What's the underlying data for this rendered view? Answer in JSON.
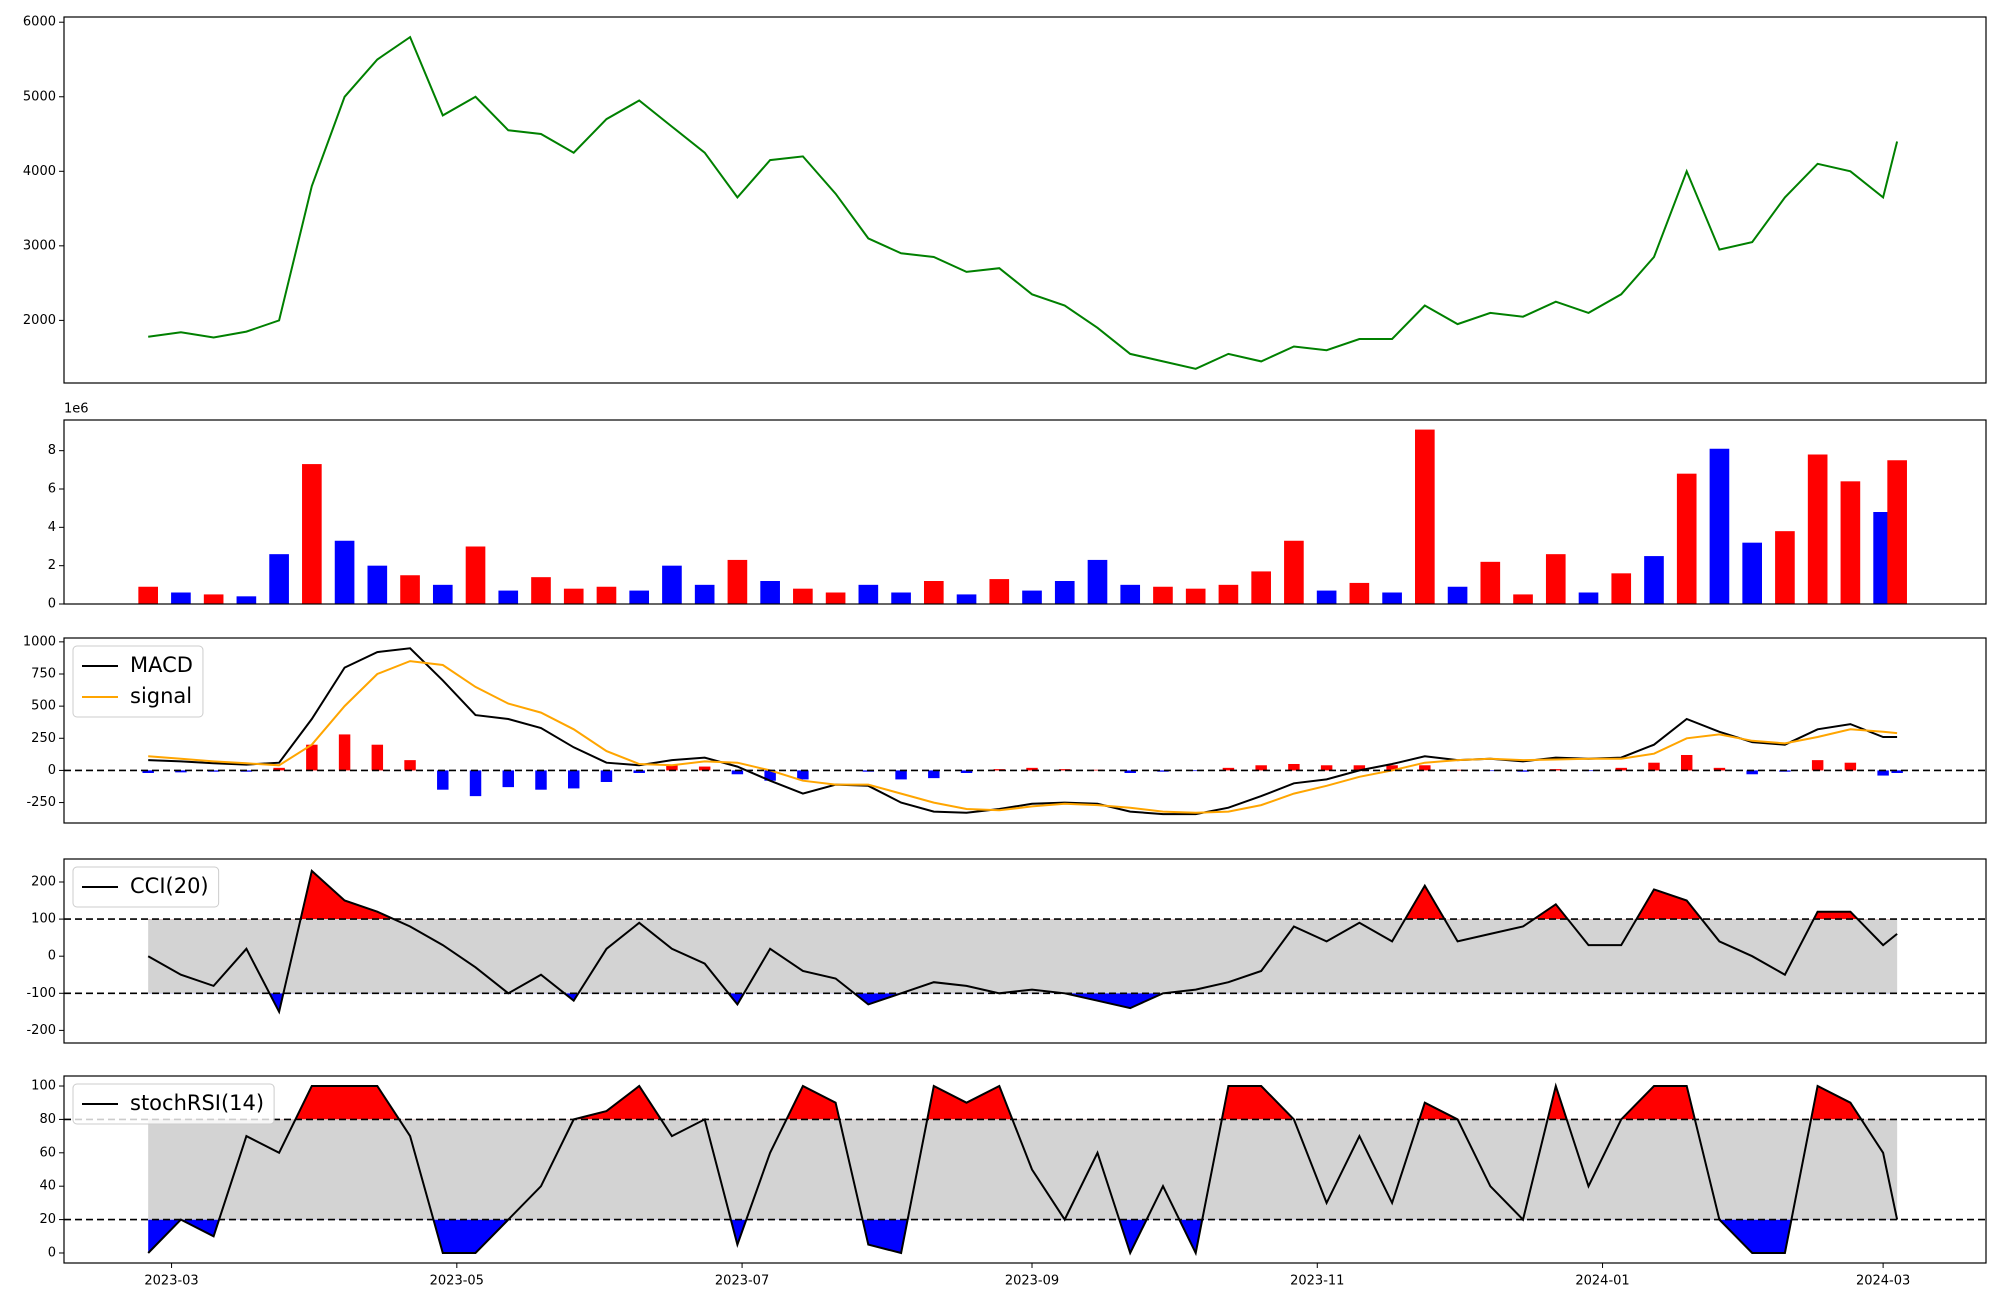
{
  "chart_data": [
    {
      "type": "line",
      "x": [
        "2023-02-24",
        "2023-03-03",
        "2023-03-10",
        "2023-03-17",
        "2023-03-24",
        "2023-03-31",
        "2023-04-07",
        "2023-04-14",
        "2023-04-21",
        "2023-04-28",
        "2023-05-05",
        "2023-05-12",
        "2023-05-19",
        "2023-05-26",
        "2023-06-02",
        "2023-06-09",
        "2023-06-16",
        "2023-06-23",
        "2023-06-30",
        "2023-07-07",
        "2023-07-14",
        "2023-07-21",
        "2023-07-28",
        "2023-08-04",
        "2023-08-11",
        "2023-08-18",
        "2023-08-25",
        "2023-09-01",
        "2023-09-08",
        "2023-09-15",
        "2023-09-22",
        "2023-09-29",
        "2023-10-06",
        "2023-10-13",
        "2023-10-20",
        "2023-10-27",
        "2023-11-03",
        "2023-11-10",
        "2023-11-17",
        "2023-11-24",
        "2023-12-01",
        "2023-12-08",
        "2023-12-15",
        "2023-12-22",
        "2023-12-29",
        "2024-01-05",
        "2024-01-12",
        "2024-01-19",
        "2024-01-26",
        "2024-02-02",
        "2024-02-09",
        "2024-02-16",
        "2024-02-23",
        "2024-03-01",
        "2024-03-04"
      ],
      "series": [
        {
          "color": "#008000",
          "values": [
            1780,
            1840,
            1770,
            1850,
            2000,
            3800,
            5000,
            5500,
            5800,
            4750,
            5000,
            4550,
            4500,
            4250,
            4700,
            4950,
            4600,
            4250,
            3650,
            4150,
            4200,
            3700,
            3100,
            2900,
            2850,
            2650,
            2700,
            2350,
            2200,
            1900,
            1550,
            1450,
            1350,
            1550,
            1450,
            1650,
            1600,
            1750,
            1750,
            2200,
            1950,
            2100,
            2050,
            2250,
            2100,
            2350,
            2850,
            4000,
            2950,
            3050,
            3650,
            4100,
            4000,
            3650,
            4400
          ]
        }
      ],
      "xlim": [
        "2023-02-06",
        "2024-03-23"
      ],
      "ylim": [
        1160,
        6070
      ],
      "yticks": [
        2000,
        3000,
        4000,
        5000,
        6000
      ]
    },
    {
      "type": "bar",
      "x": [
        "2023-02-24",
        "2023-03-03",
        "2023-03-10",
        "2023-03-17",
        "2023-03-24",
        "2023-03-31",
        "2023-04-07",
        "2023-04-14",
        "2023-04-21",
        "2023-04-28",
        "2023-05-05",
        "2023-05-12",
        "2023-05-19",
        "2023-05-26",
        "2023-06-02",
        "2023-06-09",
        "2023-06-16",
        "2023-06-23",
        "2023-06-30",
        "2023-07-07",
        "2023-07-14",
        "2023-07-21",
        "2023-07-28",
        "2023-08-04",
        "2023-08-11",
        "2023-08-18",
        "2023-08-25",
        "2023-09-01",
        "2023-09-08",
        "2023-09-15",
        "2023-09-22",
        "2023-09-29",
        "2023-10-06",
        "2023-10-13",
        "2023-10-20",
        "2023-10-27",
        "2023-11-03",
        "2023-11-10",
        "2023-11-17",
        "2023-11-24",
        "2023-12-01",
        "2023-12-08",
        "2023-12-15",
        "2023-12-22",
        "2023-12-29",
        "2024-01-05",
        "2024-01-12",
        "2024-01-19",
        "2024-01-26",
        "2024-02-02",
        "2024-02-09",
        "2024-02-16",
        "2024-02-23",
        "2024-03-01",
        "2024-03-04"
      ],
      "values": [
        0.9,
        0.6,
        0.5,
        0.4,
        2.6,
        7.3,
        3.3,
        2.0,
        1.5,
        1.0,
        3.0,
        0.7,
        1.4,
        0.8,
        0.9,
        0.7,
        2.0,
        1.0,
        2.3,
        1.2,
        0.8,
        0.6,
        1.0,
        0.6,
        1.2,
        0.5,
        1.3,
        0.7,
        1.2,
        2.3,
        1.0,
        0.9,
        0.8,
        1.0,
        1.7,
        3.3,
        0.7,
        1.1,
        0.6,
        9.1,
        0.9,
        2.2,
        0.5,
        2.6,
        0.6,
        1.6,
        2.5,
        6.8,
        8.1,
        3.2,
        3.8,
        7.8,
        6.4,
        4.8,
        7.5
      ],
      "colors": [
        "red",
        "blue",
        "red",
        "blue",
        "blue",
        "red",
        "blue",
        "blue",
        "red",
        "blue",
        "red",
        "blue",
        "red",
        "red",
        "red",
        "blue",
        "blue",
        "blue",
        "red",
        "blue",
        "red",
        "red",
        "blue",
        "blue",
        "red",
        "blue",
        "red",
        "blue",
        "blue",
        "blue",
        "blue",
        "red",
        "red",
        "red",
        "red",
        "red",
        "blue",
        "red",
        "blue",
        "red",
        "blue",
        "red",
        "red",
        "red",
        "blue",
        "red",
        "blue",
        "red",
        "blue",
        "blue",
        "red",
        "red",
        "red",
        "blue",
        "red"
      ],
      "offset_label": "1e6",
      "xlim": [
        "2023-02-06",
        "2024-03-23"
      ],
      "ylim": [
        0,
        9.6
      ],
      "yticks": [
        0,
        2,
        4,
        6,
        8
      ]
    },
    {
      "type": "macd",
      "x": [
        "2023-02-24",
        "2023-03-03",
        "2023-03-10",
        "2023-03-17",
        "2023-03-24",
        "2023-03-31",
        "2023-04-07",
        "2023-04-14",
        "2023-04-21",
        "2023-04-28",
        "2023-05-05",
        "2023-05-12",
        "2023-05-19",
        "2023-05-26",
        "2023-06-02",
        "2023-06-09",
        "2023-06-16",
        "2023-06-23",
        "2023-06-30",
        "2023-07-07",
        "2023-07-14",
        "2023-07-21",
        "2023-07-28",
        "2023-08-04",
        "2023-08-11",
        "2023-08-18",
        "2023-08-25",
        "2023-09-01",
        "2023-09-08",
        "2023-09-15",
        "2023-09-22",
        "2023-09-29",
        "2023-10-06",
        "2023-10-13",
        "2023-10-20",
        "2023-10-27",
        "2023-11-03",
        "2023-11-10",
        "2023-11-17",
        "2023-11-24",
        "2023-12-01",
        "2023-12-08",
        "2023-12-15",
        "2023-12-22",
        "2023-12-29",
        "2024-01-05",
        "2024-01-12",
        "2024-01-19",
        "2024-01-26",
        "2024-02-02",
        "2024-02-09",
        "2024-02-16",
        "2024-02-23",
        "2024-03-01",
        "2024-03-04"
      ],
      "series": [
        {
          "name": "MACD",
          "color": "#000000",
          "values": [
            80,
            70,
            55,
            45,
            60,
            400,
            800,
            920,
            950,
            700,
            430,
            400,
            330,
            180,
            60,
            40,
            80,
            100,
            30,
            -80,
            -180,
            -110,
            -120,
            -250,
            -320,
            -330,
            -300,
            -260,
            -250,
            -260,
            -320,
            -340,
            -340,
            -290,
            -200,
            -100,
            -70,
            0,
            50,
            110,
            80,
            90,
            70,
            100,
            90,
            100,
            200,
            400,
            300,
            220,
            200,
            320,
            360,
            260,
            260
          ]
        },
        {
          "name": "signal",
          "color": "#ffa500",
          "values": [
            110,
            90,
            70,
            55,
            40,
            200,
            500,
            750,
            850,
            820,
            650,
            520,
            450,
            320,
            150,
            50,
            40,
            70,
            60,
            0,
            -80,
            -110,
            -110,
            -180,
            -250,
            -300,
            -310,
            -280,
            -260,
            -270,
            -290,
            -320,
            -330,
            -320,
            -270,
            -180,
            -120,
            -50,
            0,
            60,
            80,
            90,
            80,
            85,
            90,
            90,
            130,
            250,
            280,
            230,
            210,
            260,
            320,
            300,
            290
          ]
        }
      ],
      "histogram": {
        "positive_color": "red",
        "negative_color": "blue",
        "values": [
          -20,
          -15,
          -10,
          -10,
          20,
          200,
          280,
          200,
          80,
          -150,
          -200,
          -130,
          -150,
          -140,
          -90,
          -20,
          40,
          30,
          -30,
          -80,
          -70,
          0,
          -10,
          -70,
          -60,
          -20,
          10,
          20,
          10,
          5,
          -20,
          -10,
          -5,
          20,
          40,
          50,
          40,
          40,
          40,
          40,
          5,
          -5,
          -10,
          10,
          -5,
          20,
          60,
          120,
          20,
          -30,
          -10,
          80,
          60,
          -40,
          -20
        ]
      },
      "levels": [
        0
      ],
      "legend": "upper left",
      "xlim": [
        "2023-02-06",
        "2024-03-23"
      ],
      "ylim": [
        -409,
        1030
      ],
      "yticks": [
        -250,
        0,
        250,
        500,
        750,
        1000
      ]
    },
    {
      "type": "oscillator",
      "x": [
        "2023-02-24",
        "2023-03-03",
        "2023-03-10",
        "2023-03-17",
        "2023-03-24",
        "2023-03-31",
        "2023-04-07",
        "2023-04-14",
        "2023-04-21",
        "2023-04-28",
        "2023-05-05",
        "2023-05-12",
        "2023-05-19",
        "2023-05-26",
        "2023-06-02",
        "2023-06-09",
        "2023-06-16",
        "2023-06-23",
        "2023-06-30",
        "2023-07-07",
        "2023-07-14",
        "2023-07-21",
        "2023-07-28",
        "2023-08-04",
        "2023-08-11",
        "2023-08-18",
        "2023-08-25",
        "2023-09-01",
        "2023-09-08",
        "2023-09-15",
        "2023-09-22",
        "2023-09-29",
        "2023-10-06",
        "2023-10-13",
        "2023-10-20",
        "2023-10-27",
        "2023-11-03",
        "2023-11-10",
        "2023-11-17",
        "2023-11-24",
        "2023-12-01",
        "2023-12-08",
        "2023-12-15",
        "2023-12-22",
        "2023-12-29",
        "2024-01-05",
        "2024-01-12",
        "2024-01-19",
        "2024-01-26",
        "2024-02-02",
        "2024-02-09",
        "2024-02-16",
        "2024-02-23",
        "2024-03-01",
        "2024-03-04"
      ],
      "series": [
        {
          "name": "CCI(20)",
          "color": "#000000",
          "values": [
            0,
            -50,
            -80,
            20,
            -150,
            230,
            150,
            120,
            80,
            30,
            -30,
            -100,
            -50,
            -120,
            20,
            90,
            20,
            -20,
            -130,
            20,
            -40,
            -60,
            -130,
            -100,
            -70,
            -80,
            -100,
            -90,
            -100,
            -120,
            -140,
            -100,
            -90,
            -70,
            -40,
            80,
            40,
            90,
            40,
            190,
            40,
            60,
            80,
            140,
            30,
            30,
            180,
            150,
            40,
            0,
            -50,
            120,
            120,
            30,
            60
          ]
        }
      ],
      "levels": [
        -100,
        100
      ],
      "band_color": "#d3d3d3",
      "upper_color": "red",
      "lower_color": "blue",
      "legend": "upper left",
      "xlim": [
        "2023-02-06",
        "2024-03-23"
      ],
      "ylim": [
        -234,
        262
      ],
      "yticks": [
        -200,
        -100,
        0,
        100,
        200
      ]
    },
    {
      "type": "oscillator",
      "x": [
        "2023-02-24",
        "2023-03-03",
        "2023-03-10",
        "2023-03-17",
        "2023-03-24",
        "2023-03-31",
        "2023-04-07",
        "2023-04-14",
        "2023-04-21",
        "2023-04-28",
        "2023-05-05",
        "2023-05-12",
        "2023-05-19",
        "2023-05-26",
        "2023-06-02",
        "2023-06-09",
        "2023-06-16",
        "2023-06-23",
        "2023-06-30",
        "2023-07-07",
        "2023-07-14",
        "2023-07-21",
        "2023-07-28",
        "2023-08-04",
        "2023-08-11",
        "2023-08-18",
        "2023-08-25",
        "2023-09-01",
        "2023-09-08",
        "2023-09-15",
        "2023-09-22",
        "2023-09-29",
        "2023-10-06",
        "2023-10-13",
        "2023-10-20",
        "2023-10-27",
        "2023-11-03",
        "2023-11-10",
        "2023-11-17",
        "2023-11-24",
        "2023-12-01",
        "2023-12-08",
        "2023-12-15",
        "2023-12-22",
        "2023-12-29",
        "2024-01-05",
        "2024-01-12",
        "2024-01-19",
        "2024-01-26",
        "2024-02-02",
        "2024-02-09",
        "2024-02-16",
        "2024-02-23",
        "2024-03-01",
        "2024-03-04"
      ],
      "series": [
        {
          "name": "stochRSI(14)",
          "color": "#000000",
          "values": [
            0,
            20,
            10,
            70,
            60,
            100,
            100,
            100,
            70,
            0,
            0,
            20,
            40,
            80,
            85,
            100,
            70,
            80,
            5,
            60,
            100,
            90,
            5,
            0,
            100,
            90,
            100,
            50,
            20,
            60,
            0,
            40,
            0,
            100,
            100,
            80,
            30,
            70,
            30,
            90,
            80,
            40,
            20,
            100,
            40,
            80,
            100,
            100,
            20,
            0,
            0,
            100,
            90,
            60,
            20
          ]
        }
      ],
      "levels": [
        20,
        80
      ],
      "band_color": "#d3d3d3",
      "upper_color": "red",
      "lower_color": "blue",
      "legend": "upper left",
      "xlim": [
        "2023-02-06",
        "2024-03-23"
      ],
      "ylim": [
        -6,
        106
      ],
      "yticks": [
        0,
        20,
        40,
        60,
        80,
        100
      ],
      "xticks": [
        {
          "value": "2023-03-01",
          "label": "2023-03"
        },
        {
          "value": "2023-05-01",
          "label": "2023-05"
        },
        {
          "value": "2023-07-01",
          "label": "2023-07"
        },
        {
          "value": "2023-09-01",
          "label": "2023-09"
        },
        {
          "value": "2023-11-01",
          "label": "2023-11"
        },
        {
          "value": "2024-01-01",
          "label": "2024-01"
        },
        {
          "value": "2024-03-01",
          "label": "2024-03"
        }
      ]
    }
  ]
}
